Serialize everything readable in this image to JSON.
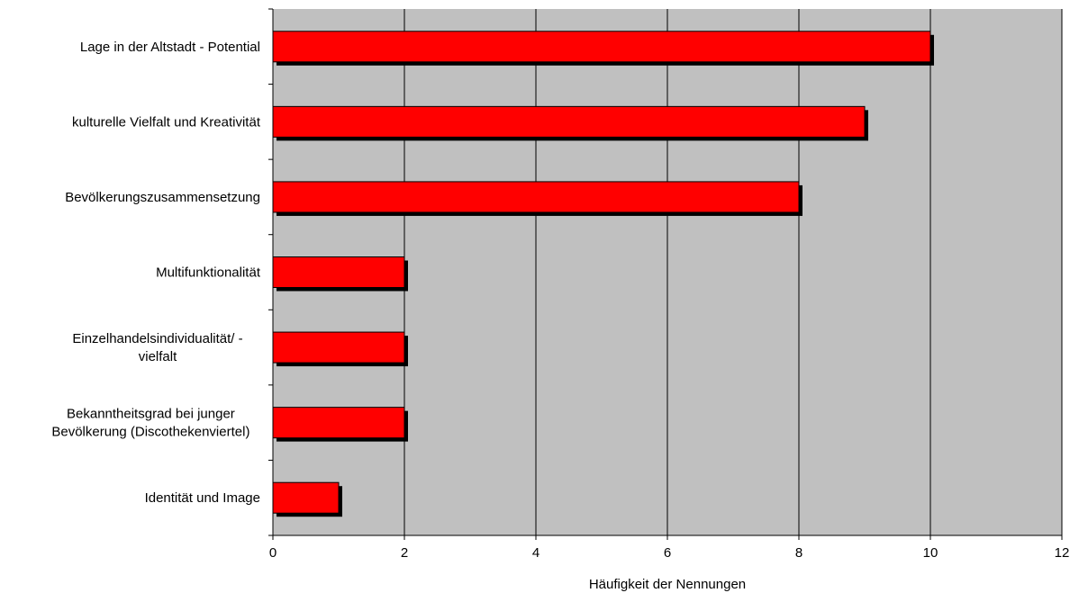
{
  "chart_data": {
    "type": "bar",
    "orientation": "horizontal",
    "categories": [
      "Lage in der Altstadt - Potential",
      "kulturelle Vielfalt und Kreativität",
      "Bevölkerungszusammensetzung",
      "Multifunktionalität",
      "Einzelhandelsindividualität/ -\nvielfalt",
      "Bekanntheitsgrad bei junger\nBevölkerung (Discothekenviertel)",
      "Identität und Image"
    ],
    "values": [
      10,
      9,
      8,
      2,
      2,
      2,
      1
    ],
    "title": "",
    "xlabel": "Häufigkeit der Nennungen",
    "ylabel": "",
    "xlim": [
      0,
      12
    ],
    "xticks": [
      0,
      2,
      4,
      6,
      8,
      10,
      12
    ],
    "xtick_labels": [
      "0",
      "2",
      "4",
      "6",
      "8",
      "10",
      "12"
    ],
    "grid": "vertical",
    "legend": "none",
    "colors": {
      "bar": "#ff0000",
      "bar_shadow": "#000000",
      "plot_background": "#c0c0c0",
      "gridline": "#000000"
    }
  }
}
